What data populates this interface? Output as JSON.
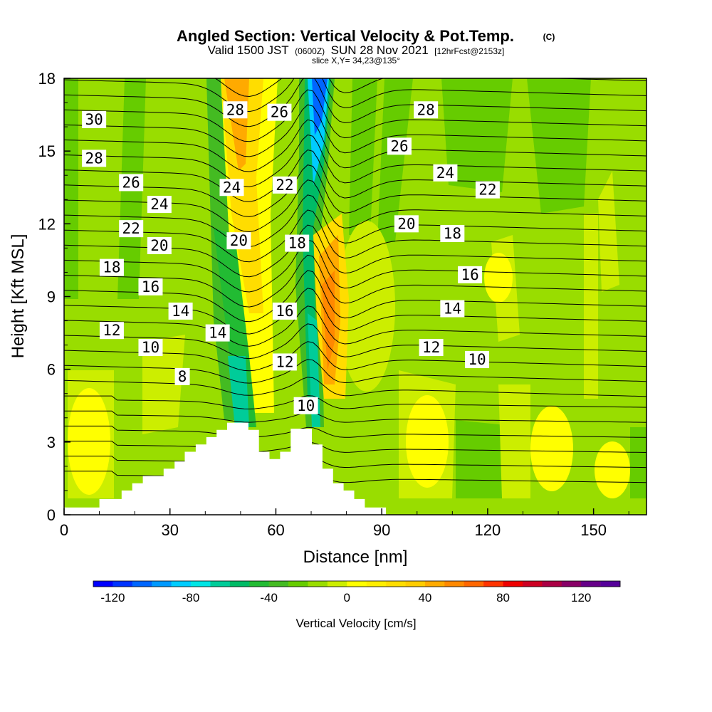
{
  "title": "Angled Section: Vertical Velocity & Pot.Temp.",
  "copyright": "(C)",
  "subtitle_prefix": "Valid 1500 JST",
  "subtitle_small1": "(0600Z)",
  "subtitle_mid": "SUN 28 Nov 2021",
  "subtitle_small2": "[12hrFcst@2153z]",
  "slice_label": "slice X,Y= 34,23@135°",
  "chart_data": {
    "type": "heatmap",
    "xlabel": "Distance [nm]",
    "ylabel": "Height [Kft MSL]",
    "xlim": [
      0,
      165
    ],
    "ylim": [
      0,
      18
    ],
    "xticks": [
      0,
      30,
      60,
      90,
      120,
      150
    ],
    "yticks": [
      0,
      3,
      6,
      9,
      12,
      15,
      18
    ],
    "colorbar": {
      "label": "Vertical Velocity [cm/s]",
      "min": -130,
      "max": 140,
      "step": 10,
      "tick_values": [
        -120,
        -80,
        -40,
        0,
        40,
        80,
        120
      ],
      "tick_labels": [
        "-120",
        "-80",
        "-40",
        "0",
        "40",
        "80",
        "120"
      ],
      "colors": [
        "#0000ff",
        "#0033ff",
        "#0066ff",
        "#0099ff",
        "#00ccff",
        "#00e5e5",
        "#00cc99",
        "#00bb66",
        "#22bb33",
        "#44bb22",
        "#66cc00",
        "#99dd00",
        "#ccee00",
        "#ffff00",
        "#ffee00",
        "#ffdd00",
        "#ffcc00",
        "#ffaa00",
        "#ff8800",
        "#ff6600",
        "#ff3300",
        "#ee0000",
        "#cc0022",
        "#aa0044",
        "#880066",
        "#660088",
        "#550099"
      ]
    },
    "theta_contours": {
      "name": "Pot.Temp. (C)",
      "interval": 1,
      "labels": [
        {
          "text": "30",
          "x": 8.5,
          "y": 16.3
        },
        {
          "text": "28",
          "x": 8.5,
          "y": 14.7
        },
        {
          "text": "26",
          "x": 19,
          "y": 13.7
        },
        {
          "text": "24",
          "x": 27,
          "y": 12.8
        },
        {
          "text": "22",
          "x": 19,
          "y": 11.8
        },
        {
          "text": "20",
          "x": 27,
          "y": 11.1
        },
        {
          "text": "18",
          "x": 13.5,
          "y": 10.2
        },
        {
          "text": "16",
          "x": 24.5,
          "y": 9.4
        },
        {
          "text": "14",
          "x": 33,
          "y": 8.4
        },
        {
          "text": "12",
          "x": 13.5,
          "y": 7.6
        },
        {
          "text": "10",
          "x": 24.5,
          "y": 6.9
        },
        {
          "text": "8",
          "x": 33.5,
          "y": 5.7
        },
        {
          "text": "28",
          "x": 48.5,
          "y": 16.7
        },
        {
          "text": "24",
          "x": 47.5,
          "y": 13.5
        },
        {
          "text": "20",
          "x": 49.5,
          "y": 11.3
        },
        {
          "text": "14",
          "x": 43.5,
          "y": 7.5
        },
        {
          "text": "26",
          "x": 61,
          "y": 16.6
        },
        {
          "text": "22",
          "x": 62.5,
          "y": 13.6
        },
        {
          "text": "18",
          "x": 66,
          "y": 11.2
        },
        {
          "text": "16",
          "x": 62.5,
          "y": 8.4
        },
        {
          "text": "12",
          "x": 62.5,
          "y": 6.3
        },
        {
          "text": "10",
          "x": 68.5,
          "y": 4.5
        },
        {
          "text": "28",
          "x": 102.5,
          "y": 16.7
        },
        {
          "text": "26",
          "x": 95,
          "y": 15.2
        },
        {
          "text": "24",
          "x": 108,
          "y": 14.1
        },
        {
          "text": "22",
          "x": 120,
          "y": 13.4
        },
        {
          "text": "20",
          "x": 97,
          "y": 12.0
        },
        {
          "text": "18",
          "x": 110,
          "y": 11.6
        },
        {
          "text": "16",
          "x": 115,
          "y": 9.9
        },
        {
          "text": "14",
          "x": 110,
          "y": 8.5
        },
        {
          "text": "12",
          "x": 104,
          "y": 6.9
        },
        {
          "text": "10",
          "x": 117,
          "y": 6.4
        }
      ]
    },
    "terrain": {
      "x": [
        0,
        10,
        10,
        16.3,
        16.3,
        19.3,
        19.3,
        22.3,
        22.3,
        28.2,
        28.2,
        31.3,
        31.3,
        34.2,
        34.2,
        37.3,
        37.3,
        40.3,
        40.3,
        43.2,
        43.2,
        46.2,
        46.2,
        52.2,
        52.2,
        55.2,
        55.2,
        58.2,
        58.2,
        61.2,
        61.2,
        64.2,
        64.2,
        67.2,
        67.2,
        70.2,
        70.2,
        73.2,
        73.2,
        76.2,
        76.2,
        79.2,
        79.2,
        82.2,
        82.2,
        85.2,
        85.2,
        91.2,
        91.2,
        165
      ],
      "y": [
        0.3,
        0.3,
        0.65,
        0.65,
        1.0,
        1.0,
        1.3,
        1.3,
        1.6,
        1.6,
        1.9,
        1.9,
        2.2,
        2.2,
        2.6,
        2.6,
        2.9,
        2.9,
        3.2,
        3.2,
        3.5,
        3.5,
        3.8,
        3.8,
        3.5,
        3.5,
        2.6,
        2.6,
        2.3,
        2.3,
        2.6,
        2.6,
        3.55,
        3.55,
        3.55,
        3.55,
        2.9,
        2.9,
        1.9,
        1.9,
        1.3,
        1.3,
        1.0,
        1.0,
        0.65,
        0.65,
        0.3,
        0.3,
        0,
        0
      ]
    }
  }
}
